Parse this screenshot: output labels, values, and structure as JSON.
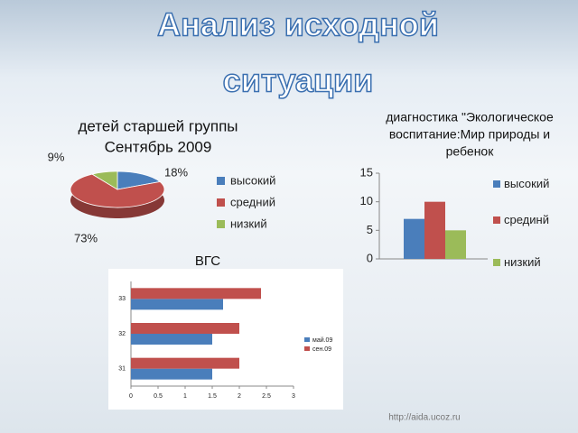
{
  "slide": {
    "title_lines": [
      "Анализ исходной",
      "ситуации"
    ],
    "footer": "http://aida.ucoz.ru"
  },
  "chart_data": [
    {
      "type": "pie",
      "title_lines": [
        "детей старшей группы",
        "Сентябрь 2009"
      ],
      "categories": [
        "высокий",
        "средний",
        "низкий"
      ],
      "values": [
        18,
        73,
        9
      ],
      "value_labels": [
        "18%",
        "73%",
        "9%"
      ],
      "colors": [
        "#4a7ebb",
        "#c0504d",
        "#9bbb59"
      ],
      "legend": "right"
    },
    {
      "type": "bar",
      "title_lines": [
        "диагностика \"Экологическое",
        "воспитание:Мир природы и",
        "ребенок"
      ],
      "series": [
        {
          "name": "высокий",
          "color": "#4a7ebb",
          "values": [
            7
          ]
        },
        {
          "name": "срединй",
          "color": "#c0504d",
          "values": [
            10
          ]
        },
        {
          "name": "низкий",
          "color": "#9bbb59",
          "values": [
            5
          ]
        }
      ],
      "ylim": [
        0,
        15
      ],
      "yticks": [
        0,
        5,
        10,
        15
      ],
      "grid": false,
      "legend": "right"
    },
    {
      "type": "barh",
      "title": "ВГС",
      "categories": [
        "31",
        "32",
        "33"
      ],
      "series": [
        {
          "name": "май.09",
          "color": "#4a7ebb",
          "values": [
            1.5,
            1.5,
            1.7
          ]
        },
        {
          "name": "сен.09",
          "color": "#c0504d",
          "values": [
            2,
            2,
            2.4
          ]
        }
      ],
      "xlim": [
        0,
        3
      ],
      "xticks": [
        0,
        0.5,
        1,
        1.5,
        2,
        2.5,
        3
      ],
      "grid": false,
      "legend": "right"
    }
  ]
}
